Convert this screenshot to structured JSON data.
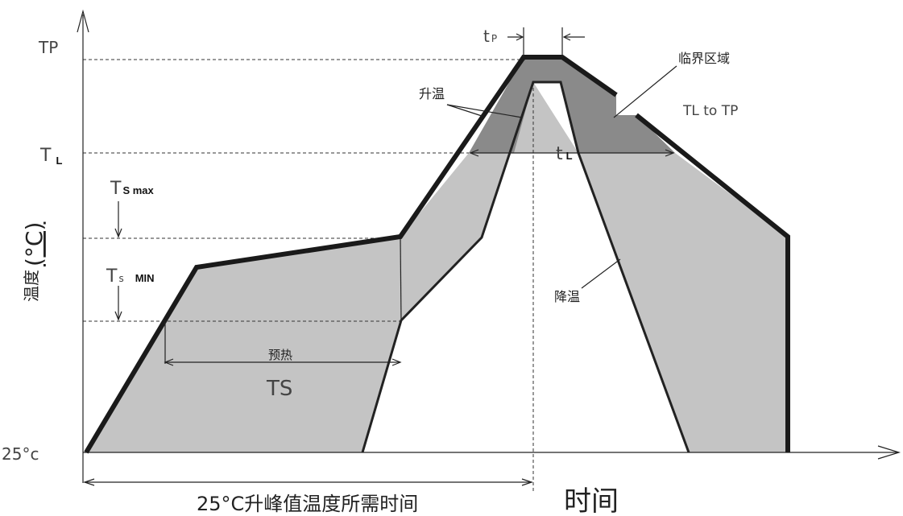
{
  "labels": {
    "tp": "TP",
    "tl_T": "T",
    "tl_sub": "L",
    "tsmax_T": "T",
    "tsmax_sub": "S max",
    "tsmin_T": "T",
    "tsmin_s": "s",
    "tsmin_sub": "MIN",
    "t25": "25°c",
    "ylabel_cjk": "温度",
    "ylabel_unit": "(°C)",
    "tp_small_t": "t",
    "tp_small_sub": "P",
    "tl_small_t": "t",
    "tl_small_sub": "L",
    "heating": "升温",
    "critical": "临界区域",
    "tl_to_tp": "TL to TP",
    "cooling": "降温",
    "preheat": "预热",
    "ts": "TS",
    "bottom_caption": "25°C升峰值温度所需时间",
    "time": "时间"
  },
  "colors": {
    "light_fill": "#c4c4c4",
    "dark_fill": "#8a8a8a",
    "stroke": "#1a1a1a"
  }
}
